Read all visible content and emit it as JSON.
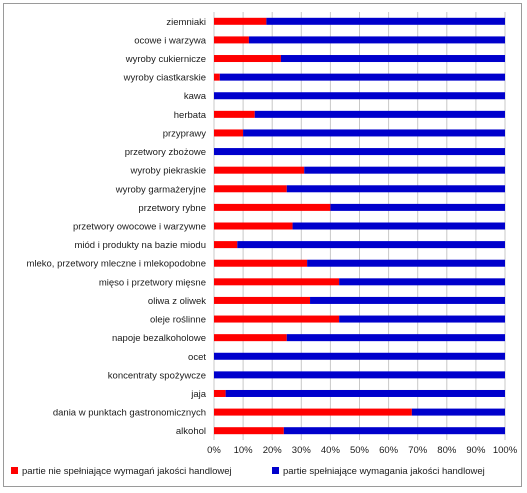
{
  "chart_data": {
    "type": "bar",
    "orientation": "horizontal",
    "stacked": "percent",
    "categories": [
      "ziemniaki",
      "ocowe i warzywa",
      "wyroby cukiernicze",
      "wyroby ciastkarskie",
      "kawa",
      "herbata",
      "przyprawy",
      "przetwory zbożowe",
      "wyroby piekraskie",
      "wyroby garmażeryjne",
      "przetwory rybne",
      "przetwory owocowe i warzywne",
      "miód i produkty na bazie miodu",
      "mleko, przetwory mleczne i mlekopodobne",
      "mięso i przetwory mięsne",
      "oliwa z oliwek",
      "oleje roślinne",
      "napoje bezalkoholowe",
      "ocet",
      "koncentraty spożywcze",
      "jaja",
      "dania w punktach gastronomicznych",
      "alkohol"
    ],
    "series": [
      {
        "name": "partie nie spełniające wymagań jakości handlowej",
        "color": "#ff0000",
        "values": [
          18,
          12,
          23,
          2,
          0,
          14,
          10,
          0,
          31,
          25,
          40,
          27,
          8,
          32,
          43,
          33,
          43,
          25,
          0,
          0,
          4,
          68,
          24
        ]
      },
      {
        "name": "partie spełniające wymagania jakości handlowej",
        "color": "#0000cc",
        "values": [
          82,
          88,
          77,
          98,
          100,
          86,
          90,
          100,
          69,
          75,
          60,
          73,
          92,
          68,
          57,
          67,
          57,
          75,
          100,
          100,
          96,
          32,
          76
        ]
      }
    ],
    "xlim": [
      0,
      100
    ],
    "xticks": [
      "0%",
      "10%",
      "20%",
      "30%",
      "40%",
      "50%",
      "60%",
      "70%",
      "80%",
      "90%",
      "100%"
    ],
    "grid": true,
    "legend_position": "bottom"
  }
}
